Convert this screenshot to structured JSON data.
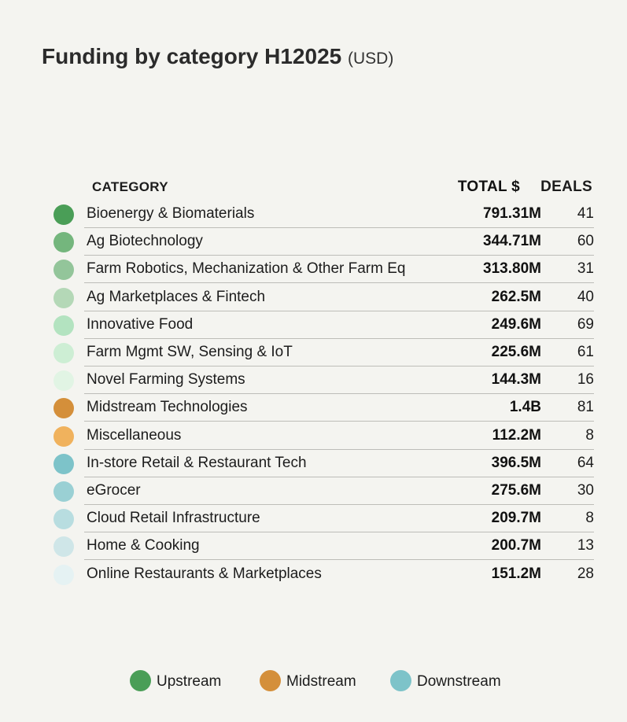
{
  "title": "Funding by category H12025",
  "title_unit": "(USD)",
  "headers": {
    "category": "CATEGORY",
    "total": "TOTAL $",
    "deals": "DEALS"
  },
  "chart_data": {
    "type": "table",
    "title": "Funding by category H12025",
    "unit": "(USD)",
    "columns": [
      "CATEGORY",
      "TOTAL $",
      "DEALS"
    ],
    "rows": [
      {
        "category": "Bioenergy & Biomaterials",
        "total": "791.31M",
        "deals": "41",
        "stream": "Upstream",
        "color": "#4a9e57"
      },
      {
        "category": "Ag Biotechnology",
        "total": "344.71M",
        "deals": "60",
        "stream": "Upstream",
        "color": "#74b67d"
      },
      {
        "category": "Farm Robotics, Mechanization & Other Farm Eq",
        "total": "313.80M",
        "deals": "31",
        "stream": "Upstream",
        "color": "#93c59a"
      },
      {
        "category": "Ag Marketplaces & Fintech",
        "total": "262.5M",
        "deals": "40",
        "stream": "Upstream",
        "color": "#b4d8b7"
      },
      {
        "category": "Innovative Food",
        "total": "249.6M",
        "deals": "69",
        "stream": "Upstream",
        "color": "#b3e3c0"
      },
      {
        "category": "Farm Mgmt SW, Sensing & IoT",
        "total": "225.6M",
        "deals": "61",
        "stream": "Upstream",
        "color": "#cdeed4"
      },
      {
        "category": "Novel Farming Systems",
        "total": "144.3M",
        "deals": "16",
        "stream": "Upstream",
        "color": "#e1f4e4"
      },
      {
        "category": "Midstream Technologies",
        "total": "1.4B",
        "deals": "81",
        "stream": "Midstream",
        "color": "#d48f3a"
      },
      {
        "category": "Miscellaneous",
        "total": "112.2M",
        "deals": "8",
        "stream": "Midstream",
        "color": "#f0b25d"
      },
      {
        "category": "In-store Retail & Restaurant Tech",
        "total": "396.5M",
        "deals": "64",
        "stream": "Downstream",
        "color": "#7dc3c9"
      },
      {
        "category": "eGrocer",
        "total": "275.6M",
        "deals": "30",
        "stream": "Downstream",
        "color": "#9ad0d4"
      },
      {
        "category": "Cloud Retail Infrastructure",
        "total": "209.7M",
        "deals": "8",
        "stream": "Downstream",
        "color": "#b8dde0"
      },
      {
        "category": "Home & Cooking",
        "total": "200.7M",
        "deals": "13",
        "stream": "Downstream",
        "color": "#cfe6e8"
      },
      {
        "category": "Online Restaurants & Marketplaces",
        "total": "151.2M",
        "deals": "28",
        "stream": "Downstream",
        "color": "#e5f2f3"
      }
    ],
    "legend": [
      {
        "label": "Upstream",
        "color": "#4a9e57"
      },
      {
        "label": "Midstream",
        "color": "#d48f3a"
      },
      {
        "label": "Downstream",
        "color": "#7dc3c9"
      }
    ],
    "legend_position": "bottom"
  }
}
